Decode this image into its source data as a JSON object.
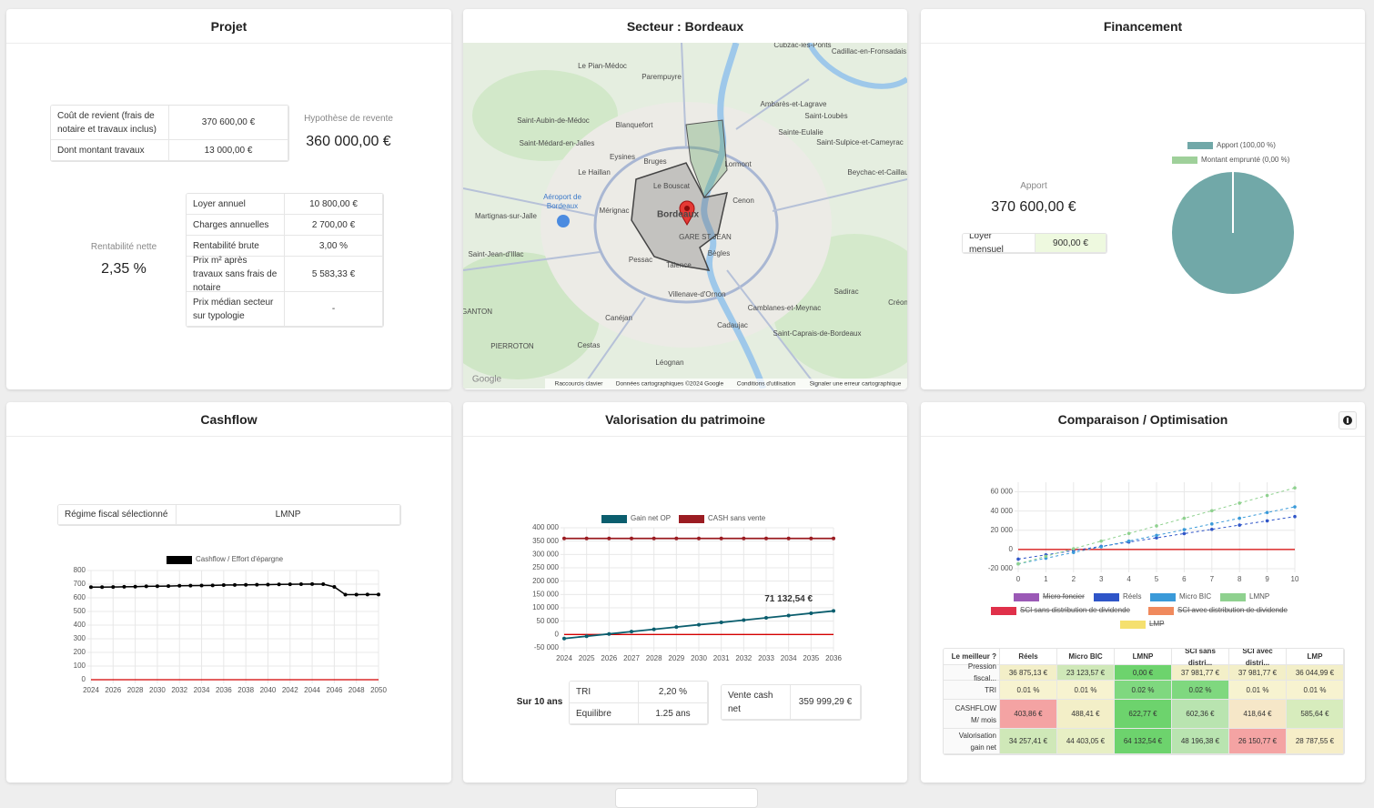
{
  "projet": {
    "title": "Projet",
    "cost_table": [
      [
        "Coût de revient (frais de notaire et travaux inclus)",
        "370 600,00 €"
      ],
      [
        "Dont montant travaux",
        "13 000,00 €"
      ]
    ],
    "resale_label": "Hypothèse de revente",
    "resale_value": "360 000,00 €",
    "net_yield_label": "Rentabilité nette",
    "net_yield_value": "2,35 %",
    "details_table": [
      [
        "Loyer annuel",
        "10 800,00 €"
      ],
      [
        "Charges annuelles",
        "2 700,00 €"
      ],
      [
        "Rentabilité brute",
        "3,00 %"
      ],
      [
        "Prix m² après travaux sans frais de notaire",
        "5 583,33 €"
      ],
      [
        "Prix médian secteur sur typologie",
        "-"
      ]
    ]
  },
  "secteur": {
    "title": "Secteur : Bordeaux",
    "map_labels": [
      "Cubzac-les-Ponts",
      "Cadillac-en-Fronsadais",
      "Le Pian-Médoc",
      "Parempuyre",
      "Ambarès-et-Lagrave",
      "Saint-Aubin-de-Médoc",
      "Blanquefort",
      "Saint-Loubès",
      "Saint-Médard-en-Jalles",
      "Sainte-Eulalie",
      "Saint-Sulpice-et-Cameyrac",
      "Eysines",
      "Bruges",
      "Lormont",
      "Le Haillan",
      "Beychac-et-Caillau",
      "Le Bouscat",
      "Aéroport de",
      "Bordeaux",
      "Mérignac",
      "Bordeaux",
      "Cenon",
      "Martignas-sur-Jalle",
      "GARE ST JEAN",
      "Saint-Jean-d'Illac",
      "Bègles",
      "Pessac",
      "Talence",
      "Sadirac",
      "Villenave-d'Ornon",
      "Créon",
      "Camblanes-et-Meynac",
      "GANTON",
      "Canéjan",
      "Cadaujac",
      "Saint-Caprais-de-Bordeaux",
      "Cestas",
      "PIERROTON",
      "Léognan"
    ],
    "attribution": [
      "Google",
      "Raccourcis clavier",
      "Données cartographiques ©2024 Google",
      "Conditions d'utilisation",
      "Signaler une erreur cartographique"
    ]
  },
  "financement": {
    "title": "Financement",
    "apport_label": "Apport",
    "apport_value": "370 600,00 €",
    "loyer_table": [
      [
        "Loyer mensuel",
        "900,00 €"
      ]
    ]
  },
  "cashflow": {
    "title": "Cashflow",
    "regime_table": [
      [
        "Régime fiscal sélectionné",
        "LMNP"
      ]
    ]
  },
  "valorisation": {
    "title": "Valorisation du patrimoine",
    "period": "Sur 10 ans",
    "stats_table": [
      [
        "TRI",
        "2,20 %"
      ],
      [
        "Equilibre",
        "1.25 ans"
      ]
    ],
    "sale_table": [
      [
        "Vente cash net",
        "359 999,29 €"
      ]
    ]
  },
  "comparaison": {
    "title": "Comparaison / Optimisation",
    "table": {
      "header": [
        "Le meilleur ?",
        "Réels",
        "Micro BIC",
        "LMNP",
        "SCI sans distri...",
        "SCI avec distri...",
        "LMP"
      ],
      "rows": [
        [
          "Pression fiscal...",
          "36 875,13 €",
          "23 123,57 €",
          "0,00 €",
          "37 981,77 €",
          "37 981,77 €",
          "36 044,99 €"
        ],
        [
          "TRI",
          "0.01 %",
          "0.01 %",
          "0.02 %",
          "0.02 %",
          "0.01 %",
          "0.01 %"
        ],
        [
          "CASHFLOW M/ mois",
          "403,86 €",
          "488,41 €",
          "622,77 €",
          "602,36 €",
          "418,64 €",
          "585,64 €"
        ],
        [
          "Valorisation gain net",
          "34 257,41 €",
          "44 403,05 €",
          "64 132,54 €",
          "48 196,38 €",
          "26 150,77 €",
          "28 787,55 €"
        ]
      ]
    }
  },
  "chart_data": [
    {
      "type": "pie",
      "categories": [
        "Apport (100,00 %)",
        "Montant emprunté (0,00 %)"
      ],
      "values": [
        100,
        0
      ],
      "colors": [
        "#71a8a8",
        "#9fd09a"
      ]
    },
    {
      "type": "line",
      "x": [
        2024,
        2025,
        2026,
        2027,
        2028,
        2029,
        2030,
        2031,
        2032,
        2033,
        2034,
        2035,
        2036,
        2037,
        2038,
        2039,
        2040,
        2041,
        2042,
        2043,
        2044,
        2045,
        2046,
        2047,
        2048,
        2049,
        2050
      ],
      "series": [
        {
          "name": "Cashflow / Effort d'épargne",
          "color": "#000000",
          "values": [
            678,
            678,
            679,
            681,
            682,
            684,
            685,
            686,
            688,
            689,
            690,
            691,
            693,
            694,
            695,
            696,
            697,
            698,
            699,
            700,
            701,
            700,
            680,
            623,
            623,
            624,
            624
          ]
        }
      ],
      "xlim": [
        2024,
        2050
      ],
      "xticks": [
        2024,
        2026,
        2028,
        2030,
        2032,
        2034,
        2036,
        2038,
        2040,
        2042,
        2044,
        2046,
        2048,
        2050
      ],
      "ylim": [
        0,
        800
      ],
      "yticks": [
        0,
        100,
        200,
        300,
        400,
        500,
        600,
        700,
        800
      ],
      "grid": true,
      "zero_line_color": "#d40000"
    },
    {
      "type": "line",
      "x": [
        2024,
        2025,
        2026,
        2027,
        2028,
        2029,
        2030,
        2031,
        2032,
        2033,
        2034,
        2035,
        2036
      ],
      "series": [
        {
          "name": "Gain net OP",
          "color": "#0b5e6e",
          "values": [
            -15000,
            -6400,
            2200,
            10800,
            19400,
            28000,
            36700,
            45300,
            53900,
            62500,
            71132.54,
            79700,
            88300
          ]
        },
        {
          "name": "CASH sans vente",
          "color": "#9b1c22",
          "values": [
            359999.29,
            359999.29,
            359999.29,
            359999.29,
            359999.29,
            359999.29,
            359999.29,
            359999.29,
            359999.29,
            359999.29,
            359999.29,
            359999.29,
            359999.29
          ]
        }
      ],
      "annotations": [
        {
          "x": 2034,
          "y": 71132.54,
          "label": "71 132,54 €"
        }
      ],
      "xlim": [
        2024,
        2036
      ],
      "xticks": [
        2024,
        2025,
        2026,
        2027,
        2028,
        2029,
        2030,
        2031,
        2032,
        2033,
        2034,
        2035,
        2036
      ],
      "ylim": [
        -50000,
        400000
      ],
      "yticks": [
        {
          "value": -50000,
          "label": "-50 000"
        },
        0,
        {
          "value": 50000,
          "label": "50 000"
        },
        {
          "value": 100000,
          "label": "100 000"
        },
        {
          "value": 150000,
          "label": "150 000"
        },
        {
          "value": 200000,
          "label": "200 000"
        },
        {
          "value": 250000,
          "label": "250 000"
        },
        {
          "value": 300000,
          "label": "300 000"
        },
        {
          "value": 350000,
          "label": "350 000"
        },
        {
          "value": 400000,
          "label": "400 000"
        }
      ],
      "grid": true,
      "zero_line_color": "#d40000"
    },
    {
      "type": "line",
      "x": [
        0,
        1,
        2,
        3,
        4,
        5,
        6,
        7,
        8,
        9,
        10
      ],
      "series": [
        {
          "name": "Micro foncier",
          "color": "#9b59b6",
          "hidden": true
        },
        {
          "name": "Réels",
          "color": "#2f55c8",
          "values": [
            -10000,
            -5574,
            -1149,
            3277,
            7703,
            12129,
            16554,
            20980,
            25406,
            29832,
            34257.41
          ]
        },
        {
          "name": "Micro BIC",
          "color": "#3a9ad9",
          "values": [
            -15000,
            -9060,
            -3119,
            2821,
            8761,
            14702,
            20642,
            26582,
            32522,
            38463,
            44403.05
          ]
        },
        {
          "name": "LMNP",
          "color": "#8fd18f",
          "values": [
            -15000,
            -7087,
            826,
            8740,
            16653,
            24566,
            32479,
            40393,
            48306,
            56219,
            64132.54
          ]
        },
        {
          "name": "SCI sans distribution de dividende",
          "color": "#e0304a",
          "hidden": true
        },
        {
          "name": "SCI avec distribution de dividende",
          "color": "#f08a5d",
          "hidden": true
        },
        {
          "name": "LMP",
          "color": "#f5e06e",
          "hidden": true
        }
      ],
      "xlim": [
        0,
        10
      ],
      "xticks": [
        0,
        1,
        2,
        3,
        4,
        5,
        6,
        7,
        8,
        9,
        10
      ],
      "ylim": [
        -20000,
        70000
      ],
      "yticks": [
        {
          "value": -20000,
          "label": "-20 000"
        },
        0,
        {
          "value": 20000,
          "label": "20 000"
        },
        {
          "value": 40000,
          "label": "40 000"
        },
        {
          "value": 60000,
          "label": "60 000"
        }
      ],
      "grid": true,
      "dashed": true,
      "zero_line_color": "#d40000"
    }
  ]
}
